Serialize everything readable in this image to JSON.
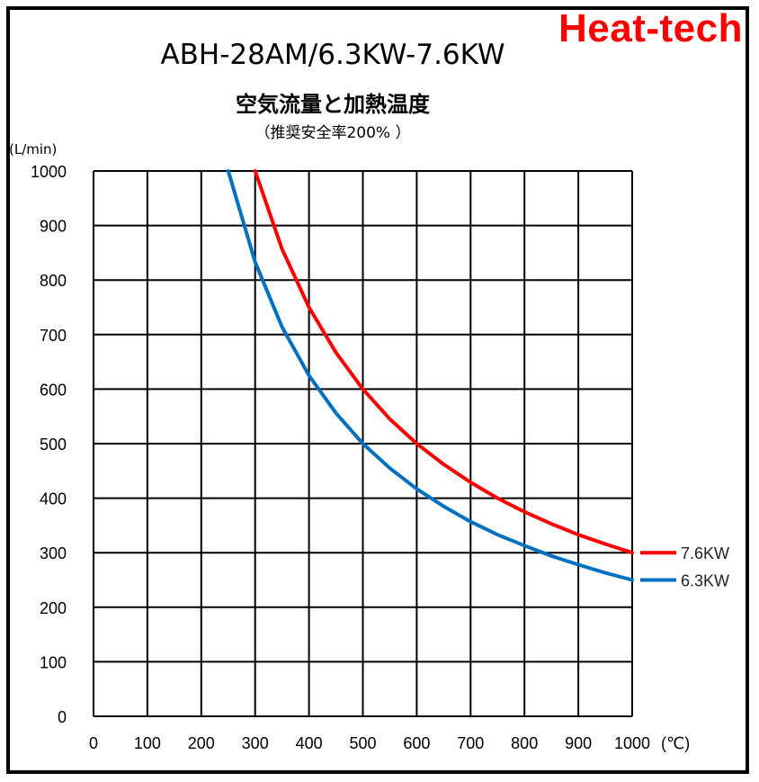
{
  "brand": {
    "text": "Heat-tech",
    "color": "#ff0000"
  },
  "title": "ABH-28AM/6.3KW-7.6KW",
  "subtitle": "空気流量と加熱温度",
  "note": "（推奨安全率200% ）",
  "chart_data": {
    "type": "line",
    "xunit": "(℃)",
    "yunit": "(L/min)",
    "xlim": [
      0,
      1000
    ],
    "ylim": [
      0,
      1000
    ],
    "xticks": [
      0,
      100,
      200,
      300,
      400,
      500,
      600,
      700,
      800,
      900,
      1000
    ],
    "yticks": [
      0,
      100,
      200,
      300,
      400,
      500,
      600,
      700,
      800,
      900,
      1000
    ],
    "grid": true,
    "legend_position": "right",
    "series": [
      {
        "name": "7.6KW",
        "color": "#ff0000",
        "x": [
          300,
          350,
          400,
          450,
          500,
          550,
          600,
          650,
          700,
          750,
          800,
          850,
          900,
          950,
          1000
        ],
        "y": [
          1000,
          857,
          750,
          667,
          600,
          545,
          500,
          462,
          429,
          400,
          375,
          353,
          333,
          316,
          300
        ]
      },
      {
        "name": "6.3KW",
        "color": "#0070c0",
        "x": [
          250,
          300,
          350,
          400,
          450,
          500,
          550,
          600,
          650,
          700,
          750,
          800,
          850,
          900,
          950,
          1000
        ],
        "y": [
          1000,
          833,
          714,
          625,
          556,
          500,
          455,
          417,
          385,
          357,
          333,
          313,
          294,
          278,
          263,
          250
        ]
      }
    ]
  }
}
